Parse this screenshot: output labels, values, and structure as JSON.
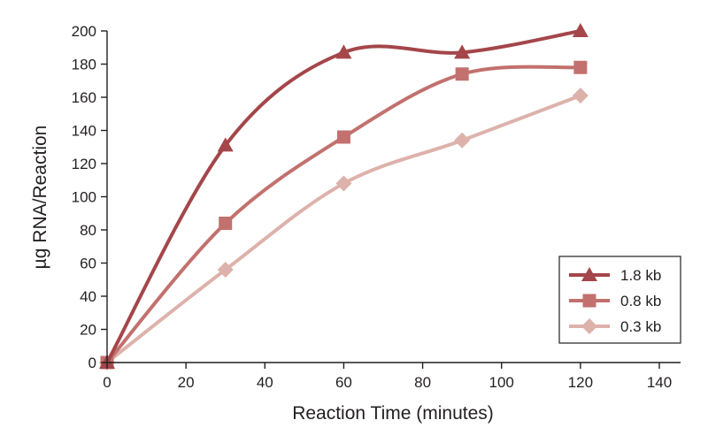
{
  "chart_data": {
    "type": "line",
    "title": "",
    "xlabel": "Reaction Time (minutes)",
    "ylabel": "µg RNA/Reaction",
    "xlim": [
      0,
      140
    ],
    "ylim": [
      0,
      200
    ],
    "x_ticks": [
      0,
      20,
      40,
      60,
      80,
      100,
      120,
      140
    ],
    "y_ticks": [
      0,
      20,
      40,
      60,
      80,
      100,
      120,
      140,
      160,
      180,
      200
    ],
    "grid": false,
    "legend_position": "bottom-right",
    "series": [
      {
        "name": "1.8 kb",
        "color": "#a4464a",
        "marker": "triangle",
        "x": [
          0,
          30,
          60,
          90,
          120
        ],
        "y": [
          0,
          131,
          187,
          187,
          200
        ]
      },
      {
        "name": "0.8 kb",
        "color": "#c2716e",
        "marker": "square",
        "x": [
          0,
          30,
          60,
          90,
          120
        ],
        "y": [
          0,
          84,
          136,
          174,
          178
        ]
      },
      {
        "name": "0.3 kb",
        "color": "#ddb2ab",
        "marker": "diamond",
        "x": [
          0,
          30,
          60,
          90,
          120
        ],
        "y": [
          0,
          56,
          108,
          134,
          161
        ]
      }
    ]
  }
}
